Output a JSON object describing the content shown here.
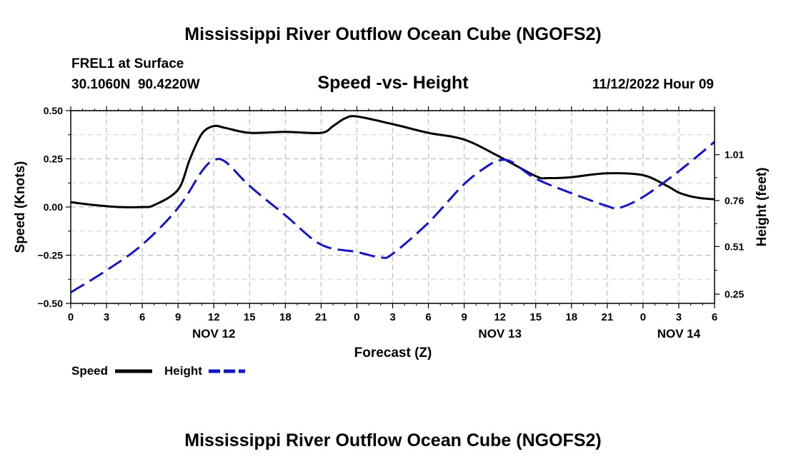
{
  "page": {
    "title_top": "Mississippi River Outflow Ocean Cube (NGOFS2)",
    "title_bottom": "Mississippi River Outflow Ocean Cube (NGOFS2)",
    "station": "FREL1 at Surface",
    "coords": "30.1060N  90.4220W",
    "subtitle": "Speed -vs- Height",
    "datetime": "11/12/2022 Hour 09"
  },
  "chart_data": {
    "type": "line",
    "title": "Speed -vs- Height",
    "xlabel": "Forecast (Z)",
    "ylabel": "Speed (Knots)",
    "ylabel_right": "Height (feet)",
    "xlim": [
      0,
      54
    ],
    "ylim": [
      -0.5,
      0.5
    ],
    "ylim_right": [
      0.2,
      1.25
    ],
    "grid": true,
    "x_ticks": [
      0,
      3,
      6,
      9,
      12,
      15,
      18,
      21,
      24,
      27,
      30,
      33,
      36,
      39,
      42,
      45,
      48,
      51,
      54
    ],
    "x_tick_labels": [
      "0",
      "3",
      "6",
      "9",
      "12",
      "15",
      "18",
      "21",
      "0",
      "3",
      "6",
      "9",
      "12",
      "15",
      "18",
      "21",
      "0",
      "3",
      "6"
    ],
    "date_labels": [
      {
        "x": 12,
        "label": "NOV 12"
      },
      {
        "x": 36,
        "label": "NOV 13"
      },
      {
        "x": 51,
        "label": "NOV 14"
      }
    ],
    "y_ticks": [
      -0.5,
      -0.25,
      0.0,
      0.25,
      0.5
    ],
    "y_tick_labels": [
      "−0.50",
      "−0.25",
      "0.00",
      "0.25",
      "0.50"
    ],
    "y_ticks_right": [
      0.25,
      0.51,
      0.76,
      1.01
    ],
    "y_tick_labels_right": [
      "0.25",
      "0.51",
      "0.76",
      "1.01"
    ],
    "legend": [
      {
        "label": "Speed",
        "color": "#000000",
        "dashed": false
      },
      {
        "label": "Height",
        "color": "#1414c8",
        "dashed": true
      }
    ],
    "series": [
      {
        "name": "Speed",
        "axis": "left",
        "color": "#000000",
        "x": [
          0,
          2,
          4,
          6,
          7,
          9,
          10,
          11,
          12,
          13,
          15,
          18,
          21,
          22,
          23,
          24,
          27,
          30,
          33,
          36,
          39,
          40,
          42,
          45,
          48,
          50,
          51,
          52,
          53,
          54
        ],
        "values": [
          0.025,
          0.01,
          0.0,
          0.0,
          0.01,
          0.09,
          0.25,
          0.38,
          0.42,
          0.41,
          0.385,
          0.39,
          0.385,
          0.42,
          0.46,
          0.47,
          0.43,
          0.385,
          0.35,
          0.26,
          0.16,
          0.15,
          0.155,
          0.175,
          0.165,
          0.11,
          0.075,
          0.055,
          0.045,
          0.04
        ]
      },
      {
        "name": "Height",
        "axis": "right",
        "color": "#1414c8",
        "x": [
          0,
          3,
          6,
          9,
          11,
          12,
          13,
          15,
          18,
          21,
          24,
          26,
          27,
          30,
          33,
          35,
          36,
          37,
          39,
          42,
          45,
          46,
          48,
          51,
          54
        ],
        "values": [
          0.26,
          0.38,
          0.52,
          0.72,
          0.92,
          0.98,
          0.97,
          0.84,
          0.68,
          0.52,
          0.48,
          0.45,
          0.47,
          0.64,
          0.85,
          0.95,
          0.98,
          0.97,
          0.88,
          0.8,
          0.73,
          0.72,
          0.78,
          0.92,
          1.08
        ]
      }
    ]
  }
}
